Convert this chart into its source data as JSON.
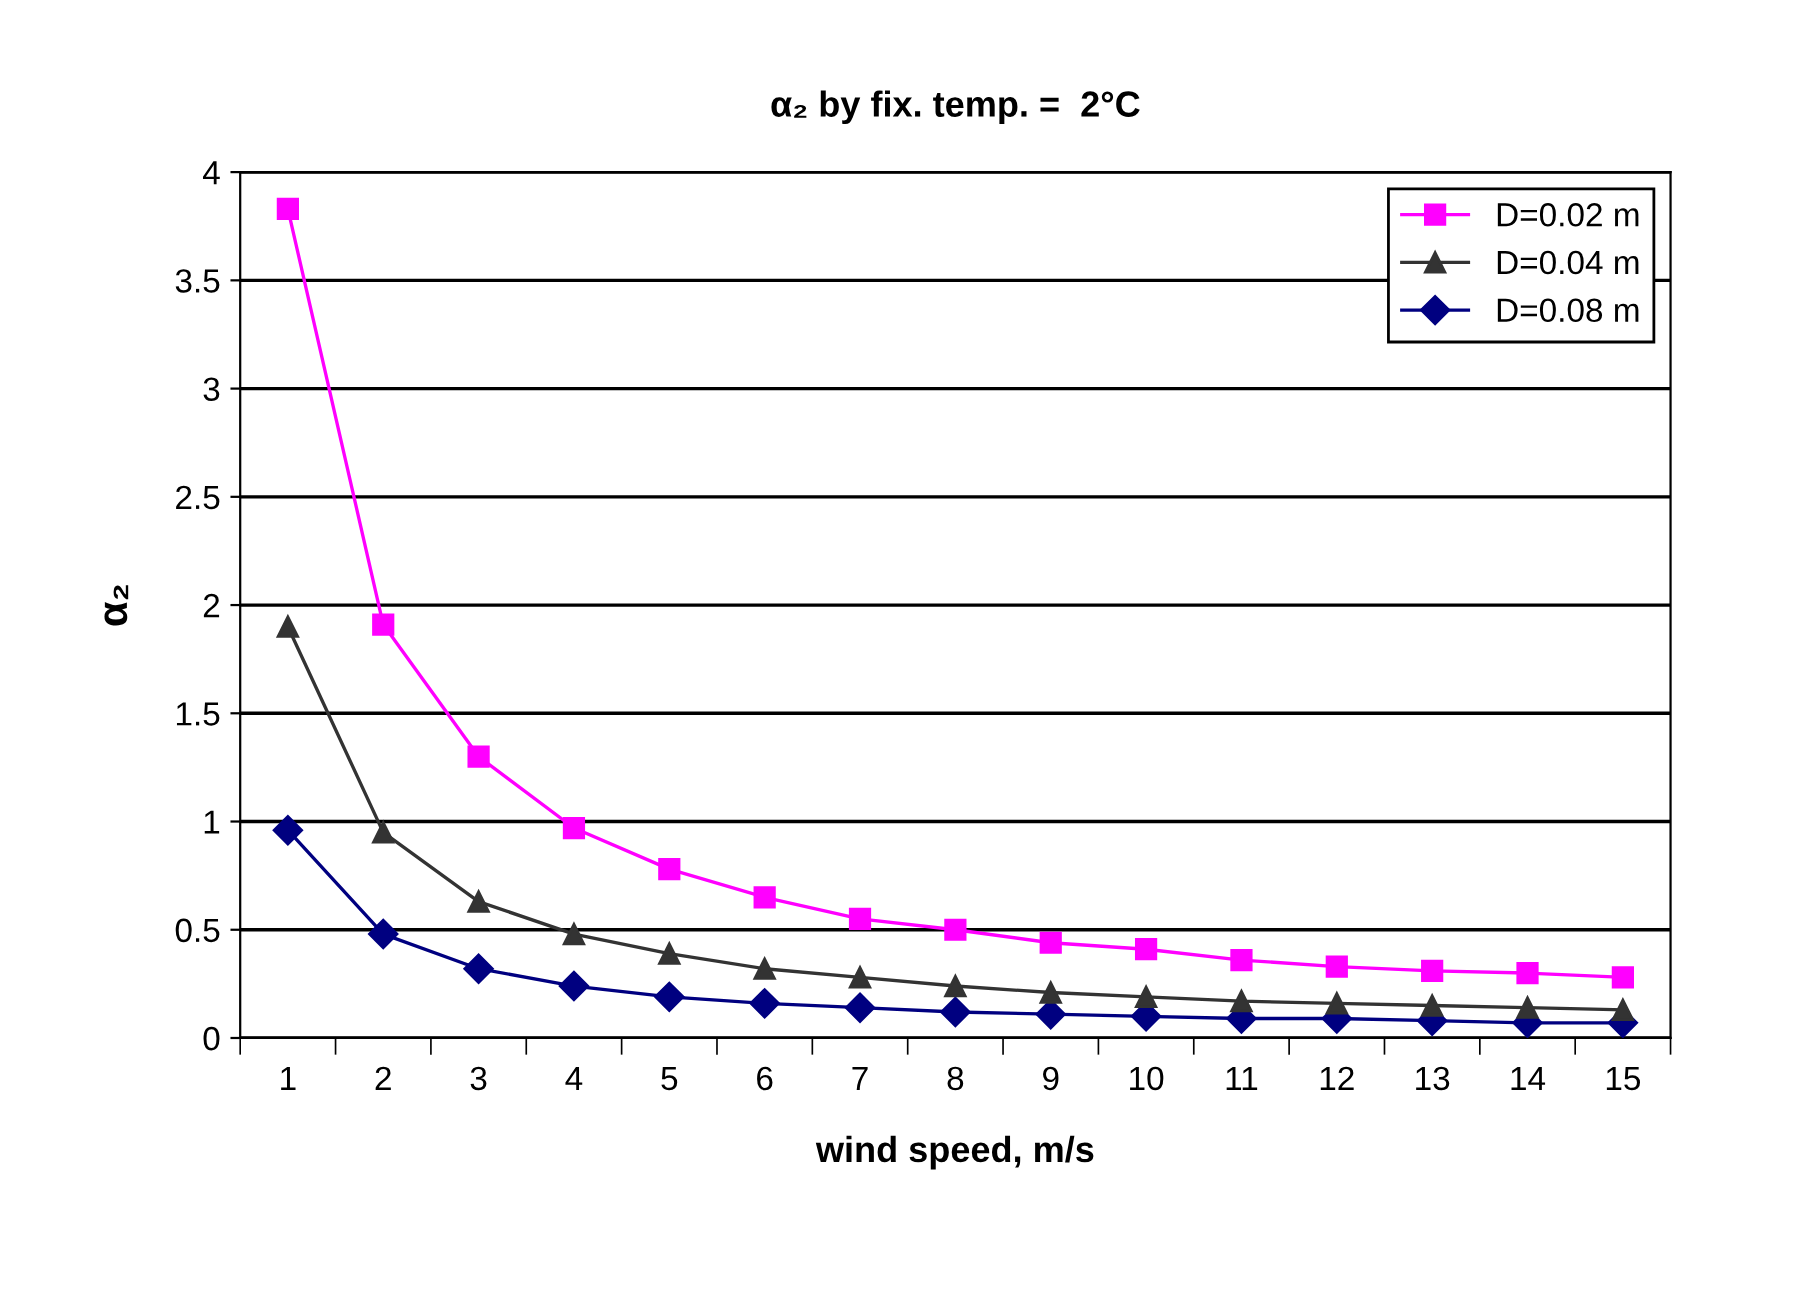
{
  "chart_data": {
    "type": "line",
    "title": "α₂ by fix. temp. =  2°C",
    "xlabel": "wind speed, m/s",
    "ylabel": "α₂",
    "categories": [
      "1",
      "2",
      "3",
      "4",
      "5",
      "6",
      "7",
      "8",
      "9",
      "10",
      "11",
      "12",
      "13",
      "14",
      "15"
    ],
    "series": [
      {
        "name": "D=0.02 m",
        "color": "#ff00ff",
        "marker": "square",
        "values": [
          3.83,
          1.91,
          1.3,
          0.97,
          0.78,
          0.65,
          0.55,
          0.5,
          0.44,
          0.41,
          0.36,
          0.33,
          0.31,
          0.3,
          0.28
        ]
      },
      {
        "name": "D=0.04 m",
        "color": "#333333",
        "marker": "triangle",
        "values": [
          1.9,
          0.95,
          0.63,
          0.48,
          0.39,
          0.32,
          0.28,
          0.24,
          0.21,
          0.19,
          0.17,
          0.16,
          0.15,
          0.14,
          0.13
        ]
      },
      {
        "name": "D=0.08 m",
        "color": "#000080",
        "marker": "diamond",
        "values": [
          0.96,
          0.48,
          0.32,
          0.24,
          0.19,
          0.16,
          0.14,
          0.12,
          0.11,
          0.1,
          0.09,
          0.09,
          0.08,
          0.07,
          0.07
        ]
      }
    ],
    "ylim": [
      0,
      4
    ],
    "yticks": [
      0,
      0.5,
      1,
      1.5,
      2,
      2.5,
      3,
      3.5,
      4
    ],
    "grid": "y",
    "legend": "top right",
    "line_style": "solid"
  }
}
